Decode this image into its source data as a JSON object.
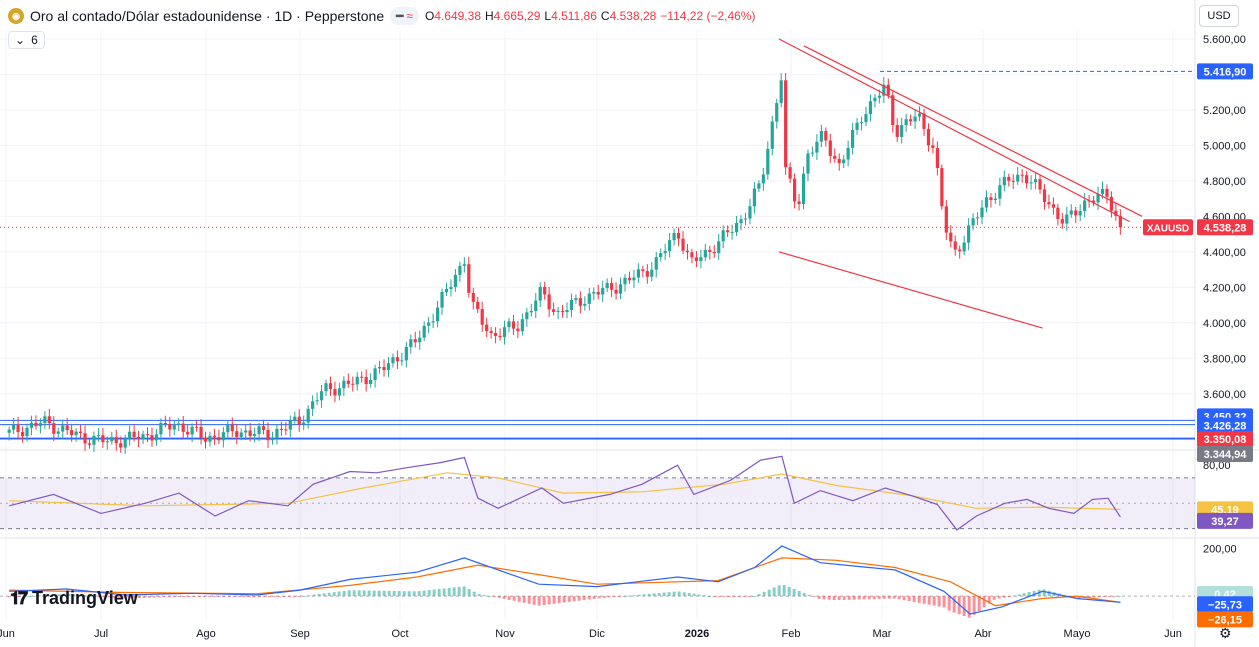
{
  "header": {
    "symbol_title": "Oro al contado/Dólar estadounidense · 1D · Pepperstone",
    "logo_icon": "gold-coin-icon",
    "pill_dash": "━",
    "pill_wave": "≈",
    "ohlc": {
      "o_label": "O",
      "o_value": "4.649,38",
      "h_label": "H",
      "h_value": "4.665,29",
      "l_label": "L",
      "l_value": "4.511,86",
      "c_label": "C",
      "c_value": "4.538,28",
      "change": "−114,22 (−2,46%)"
    },
    "indicator_count": "6",
    "indicator_toggle_icon": "chevron-down-icon",
    "currency": "USD"
  },
  "branding": {
    "text": "TradingView",
    "icon": "tradingview-logo-icon"
  },
  "settings_icon": "gear-icon",
  "colors": {
    "up": "#26a69a",
    "down": "#f23645",
    "blue": "#2962ff",
    "rsi": "#7e57c2",
    "rsi_ma": "#f5c242",
    "macd": "#2962ff",
    "signal": "#ff6d00"
  },
  "chart_data": [
    {
      "type": "candlestick",
      "symbol": "XAUUSD",
      "x_axis_ticks": [
        "Jun",
        "Jul",
        "Ago",
        "Sep",
        "Oct",
        "Nov",
        "Dic",
        "2026",
        "Feb",
        "Mar",
        "Abr",
        "Mayo",
        "Jun"
      ],
      "y_ticks": [
        "5.600,00",
        "5.400,00",
        "5.200,00",
        "5.000,00",
        "4.800,00",
        "4.600,00",
        "4.400,00",
        "4.200,00",
        "4.000,00",
        "3.800,00",
        "3.600,00"
      ],
      "ylim": [
        3300,
        5650
      ],
      "last_price": 4538.28,
      "last_price_label": "4.538,28",
      "symbol_label": "XAUUSD",
      "key_levels": [
        {
          "value": 5416.9,
          "label": "5.416,90",
          "style": "dashed"
        },
        {
          "value": 3450.32,
          "label": "3.450,32",
          "style": "solid"
        },
        {
          "value": 3426.28,
          "label": "3.426,28",
          "style": "solid"
        },
        {
          "value": 3350.08,
          "label": "3.350,08",
          "style": "solid"
        },
        {
          "value": 3344.94,
          "label": "3.344,94",
          "style": "solid"
        }
      ],
      "trendlines": [
        {
          "from": [
            "2026-01-28",
            5600
          ],
          "to": [
            "2026-05-18",
            4570
          ]
        },
        {
          "from": [
            "2026-02-05",
            5560
          ],
          "to": [
            "2026-05-22",
            4600
          ]
        },
        {
          "from": [
            "2026-01-28",
            4400
          ],
          "to": [
            "2026-04-20",
            3970
          ]
        }
      ],
      "close_path": [
        [
          "2025-06-02",
          3380
        ],
        [
          "2025-06-13",
          3440
        ],
        [
          "2025-06-24",
          3360
        ],
        [
          "2025-07-03",
          3330
        ],
        [
          "2025-07-14",
          3360
        ],
        [
          "2025-07-23",
          3430
        ],
        [
          "2025-08-01",
          3350
        ],
        [
          "2025-08-11",
          3390
        ],
        [
          "2025-08-22",
          3370
        ],
        [
          "2025-09-01",
          3450
        ],
        [
          "2025-09-08",
          3620
        ],
        [
          "2025-09-17",
          3660
        ],
        [
          "2025-09-26",
          3740
        ],
        [
          "2025-10-06",
          3900
        ],
        [
          "2025-10-14",
          4150
        ],
        [
          "2025-10-20",
          4360
        ],
        [
          "2025-10-22",
          4100
        ],
        [
          "2025-10-28",
          3930
        ],
        [
          "2025-11-05",
          3980
        ],
        [
          "2025-11-13",
          4170
        ],
        [
          "2025-11-18",
          4050
        ],
        [
          "2025-11-28",
          4150
        ],
        [
          "2025-12-10",
          4230
        ],
        [
          "2025-12-19",
          4330
        ],
        [
          "2025-12-26",
          4520
        ],
        [
          "2025-12-30",
          4330
        ],
        [
          "2026-01-08",
          4450
        ],
        [
          "2026-01-16",
          4590
        ],
        [
          "2026-01-22",
          4780
        ],
        [
          "2026-01-29",
          5410
        ],
        [
          "2026-01-30",
          4860
        ],
        [
          "2026-02-03",
          4650
        ],
        [
          "2026-02-06",
          4950
        ],
        [
          "2026-02-11",
          5050
        ],
        [
          "2026-02-16",
          4880
        ],
        [
          "2026-02-23",
          5180
        ],
        [
          "2026-03-02",
          5330
        ],
        [
          "2026-03-05",
          5080
        ],
        [
          "2026-03-12",
          5170
        ],
        [
          "2026-03-17",
          4980
        ],
        [
          "2026-03-20",
          4560
        ],
        [
          "2026-03-23",
          4390
        ],
        [
          "2026-03-27",
          4500
        ],
        [
          "2026-04-02",
          4690
        ],
        [
          "2026-04-09",
          4800
        ],
        [
          "2026-04-14",
          4840
        ],
        [
          "2026-04-20",
          4720
        ],
        [
          "2026-04-27",
          4560
        ],
        [
          "2026-05-04",
          4690
        ],
        [
          "2026-05-11",
          4720
        ],
        [
          "2026-05-15",
          4538
        ]
      ]
    },
    {
      "type": "line",
      "name": "RSI",
      "y_ticks": [
        "80,00"
      ],
      "ylim": [
        25,
        88
      ],
      "band": [
        70,
        30
      ],
      "midline": 50,
      "values_label": [
        "45,19",
        "39,27"
      ],
      "rsi_last": 39.27,
      "rsi_ma_last": 45.19,
      "rsi_path": [
        [
          "2025-06-02",
          48
        ],
        [
          "2025-06-16",
          57
        ],
        [
          "2025-07-01",
          42
        ],
        [
          "2025-07-14",
          50
        ],
        [
          "2025-07-24",
          58
        ],
        [
          "2025-08-04",
          40
        ],
        [
          "2025-08-15",
          52
        ],
        [
          "2025-08-28",
          48
        ],
        [
          "2025-09-05",
          65
        ],
        [
          "2025-09-16",
          75
        ],
        [
          "2025-09-24",
          74
        ],
        [
          "2025-10-03",
          78
        ],
        [
          "2025-10-13",
          82
        ],
        [
          "2025-10-20",
          86
        ],
        [
          "2025-10-24",
          54
        ],
        [
          "2025-10-30",
          46
        ],
        [
          "2025-11-13",
          62
        ],
        [
          "2025-11-20",
          50
        ],
        [
          "2025-12-05",
          57
        ],
        [
          "2025-12-15",
          65
        ],
        [
          "2025-12-26",
          80
        ],
        [
          "2025-12-31",
          57
        ],
        [
          "2026-01-12",
          68
        ],
        [
          "2026-01-22",
          84
        ],
        [
          "2026-01-29",
          87
        ],
        [
          "2026-02-02",
          50
        ],
        [
          "2026-02-10",
          60
        ],
        [
          "2026-02-20",
          52
        ],
        [
          "2026-03-02",
          62
        ],
        [
          "2026-03-10",
          56
        ],
        [
          "2026-03-18",
          49
        ],
        [
          "2026-03-24",
          29
        ],
        [
          "2026-03-30",
          40
        ],
        [
          "2026-04-08",
          50
        ],
        [
          "2026-04-15",
          53
        ],
        [
          "2026-04-22",
          46
        ],
        [
          "2026-04-30",
          42
        ],
        [
          "2026-05-06",
          53
        ],
        [
          "2026-05-11",
          54
        ],
        [
          "2026-05-15",
          39.27
        ]
      ],
      "rsi_ma_path": [
        [
          "2025-06-02",
          52
        ],
        [
          "2025-07-14",
          48
        ],
        [
          "2025-08-28",
          50
        ],
        [
          "2025-09-20",
          62
        ],
        [
          "2025-10-15",
          74
        ],
        [
          "2025-10-30",
          70
        ],
        [
          "2025-11-20",
          58
        ],
        [
          "2025-12-15",
          59
        ],
        [
          "2026-01-10",
          65
        ],
        [
          "2026-01-29",
          73
        ],
        [
          "2026-02-15",
          64
        ],
        [
          "2026-03-10",
          56
        ],
        [
          "2026-03-30",
          46
        ],
        [
          "2026-04-20",
          47
        ],
        [
          "2026-05-15",
          45.19
        ]
      ]
    },
    {
      "type": "line",
      "name": "MACD",
      "y_ticks": [
        "200,00"
      ],
      "ylim": [
        -100,
        235
      ],
      "values_label": [
        "0,42",
        "−25,73",
        "−26,15"
      ],
      "macd_last": -25.73,
      "signal_last": -26.15,
      "hist_last": 0.42,
      "macd_path": [
        [
          "2025-06-02",
          20
        ],
        [
          "2025-06-20",
          30
        ],
        [
          "2025-07-08",
          5
        ],
        [
          "2025-07-28",
          12
        ],
        [
          "2025-08-18",
          5
        ],
        [
          "2025-09-01",
          25
        ],
        [
          "2025-09-16",
          70
        ],
        [
          "2025-10-06",
          100
        ],
        [
          "2025-10-20",
          160
        ],
        [
          "2025-10-30",
          110
        ],
        [
          "2025-11-12",
          50
        ],
        [
          "2025-12-01",
          40
        ],
        [
          "2025-12-26",
          80
        ],
        [
          "2026-01-08",
          60
        ],
        [
          "2026-01-20",
          120
        ],
        [
          "2026-01-29",
          210
        ],
        [
          "2026-02-10",
          140
        ],
        [
          "2026-02-25",
          120
        ],
        [
          "2026-03-05",
          110
        ],
        [
          "2026-03-20",
          20
        ],
        [
          "2026-03-28",
          -75
        ],
        [
          "2026-04-07",
          -45
        ],
        [
          "2026-04-20",
          20
        ],
        [
          "2026-05-01",
          -10
        ],
        [
          "2026-05-15",
          -25.73
        ]
      ],
      "signal_path": [
        [
          "2025-06-02",
          25
        ],
        [
          "2025-07-08",
          15
        ],
        [
          "2025-08-18",
          10
        ],
        [
          "2025-09-16",
          45
        ],
        [
          "2025-10-06",
          80
        ],
        [
          "2025-10-24",
          130
        ],
        [
          "2025-11-12",
          90
        ],
        [
          "2025-12-01",
          50
        ],
        [
          "2026-01-08",
          65
        ],
        [
          "2026-01-29",
          160
        ],
        [
          "2026-02-15",
          150
        ],
        [
          "2026-03-05",
          120
        ],
        [
          "2026-03-22",
          60
        ],
        [
          "2026-04-05",
          -40
        ],
        [
          "2026-04-20",
          -10
        ],
        [
          "2026-05-01",
          0
        ],
        [
          "2026-05-15",
          -26.15
        ]
      ]
    }
  ]
}
